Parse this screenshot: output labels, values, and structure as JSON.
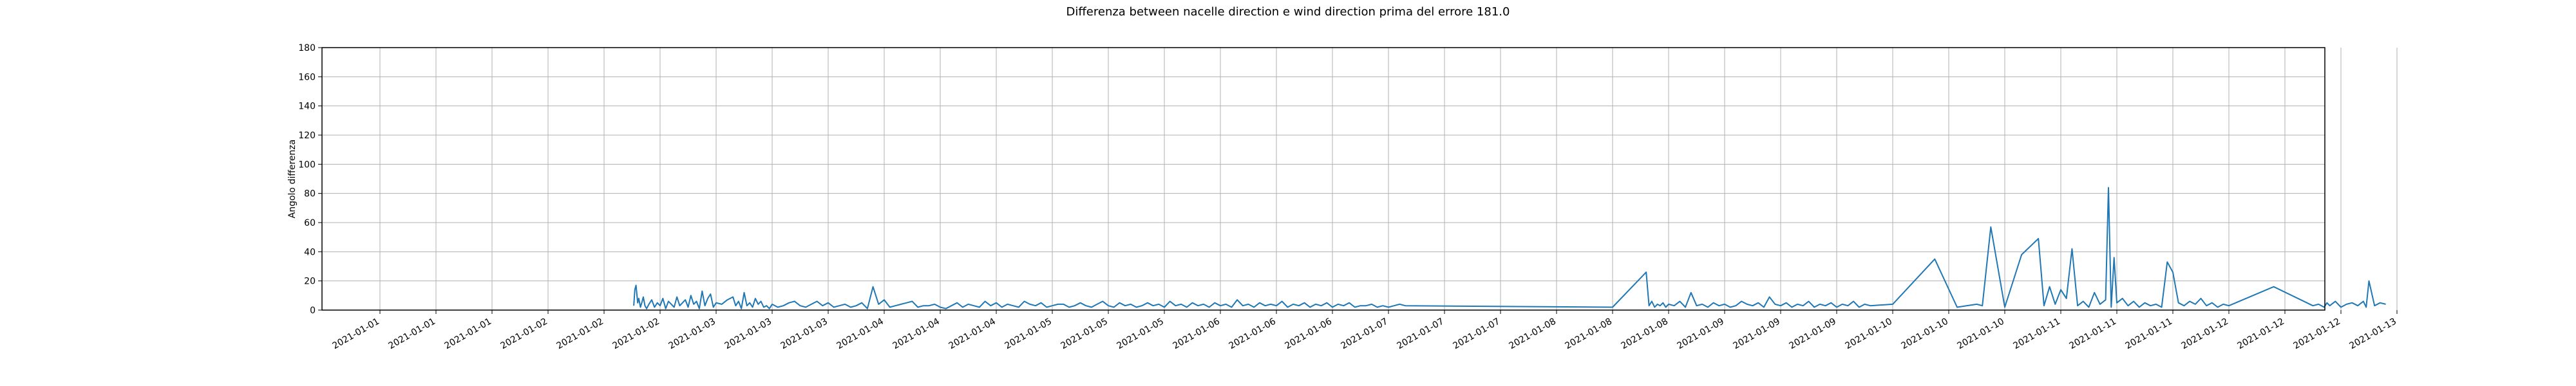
{
  "chart_data": {
    "type": "line",
    "title": "Differenza between nacelle direction e wind direction prima del errore 181.0",
    "xlabel": "",
    "ylabel": "Angolo differenza",
    "ylim": [
      0,
      180
    ],
    "y_ticks": [
      0,
      20,
      40,
      60,
      80,
      100,
      120,
      140,
      160,
      180
    ],
    "x_ticks": [
      "2021-01-01",
      "2021-01-01",
      "2021-01-01",
      "2021-01-02",
      "2021-01-02",
      "2021-01-02",
      "2021-01-03",
      "2021-01-03",
      "2021-01-03",
      "2021-01-04",
      "2021-01-04",
      "2021-01-04",
      "2021-01-05",
      "2021-01-05",
      "2021-01-05",
      "2021-01-06",
      "2021-01-06",
      "2021-01-06",
      "2021-01-07",
      "2021-01-07",
      "2021-01-07",
      "2021-01-08",
      "2021-01-08",
      "2021-01-08",
      "2021-01-09",
      "2021-01-09",
      "2021-01-09",
      "2021-01-10",
      "2021-01-10",
      "2021-01-10",
      "2021-01-11",
      "2021-01-11",
      "2021-01-11",
      "2021-01-12",
      "2021-01-12",
      "2021-01-12",
      "2021-01-13"
    ],
    "grid": true,
    "series_color": "#1f77b4",
    "series": [
      {
        "x": [
          4.53,
          4.55,
          4.57,
          4.6,
          4.62,
          4.65,
          4.68,
          4.7,
          4.73,
          4.76,
          4.8,
          4.85,
          4.9,
          4.95,
          5.0,
          5.05,
          5.1,
          5.15,
          5.2,
          5.25,
          5.3,
          5.35,
          5.4,
          5.45,
          5.5,
          5.55,
          5.6,
          5.65,
          5.7,
          5.75,
          5.8,
          5.85,
          5.9,
          5.95,
          6.0,
          6.1,
          6.2,
          6.3,
          6.35,
          6.4,
          6.45,
          6.5,
          6.55,
          6.6,
          6.65,
          6.7,
          6.75,
          6.8,
          6.85,
          6.9,
          6.95,
          7.0,
          7.1,
          7.2,
          7.3,
          7.4,
          7.5,
          7.6,
          7.7,
          7.8,
          7.9,
          8.0,
          8.1,
          8.2,
          8.3,
          8.4,
          8.5,
          8.6,
          8.7,
          8.8,
          8.9,
          9.0,
          9.1,
          9.2,
          9.3,
          9.4,
          9.5,
          9.6,
          9.7,
          9.8,
          9.9,
          10.0,
          10.1,
          10.2,
          10.3,
          10.4,
          10.5,
          10.6,
          10.7,
          10.8,
          10.9,
          11.0,
          11.1,
          11.2,
          11.3,
          11.4,
          11.5,
          11.6,
          11.7,
          11.8,
          11.9,
          12.0,
          12.1,
          12.2,
          12.3,
          12.4,
          12.5,
          12.6,
          12.7,
          12.8,
          12.9,
          13.0,
          13.1,
          13.2,
          13.3,
          13.4,
          13.5,
          13.6,
          13.7,
          13.8,
          13.9,
          14.0,
          14.1,
          14.2,
          14.3,
          14.4,
          14.5,
          14.6,
          14.7,
          14.8,
          14.9,
          15.0,
          15.1,
          15.2,
          15.3,
          15.4,
          15.5,
          15.6,
          15.7,
          15.8,
          15.9,
          16.0,
          16.1,
          16.2,
          16.3,
          16.4,
          16.5,
          16.6,
          16.7,
          16.8,
          16.9,
          17.0,
          17.1,
          17.2,
          17.3,
          17.4,
          17.5,
          17.6,
          17.7,
          17.8,
          17.9,
          18.0,
          18.1,
          18.2,
          18.3,
          22.0,
          22.6,
          22.65,
          22.7,
          22.75,
          22.8,
          22.85,
          22.9,
          22.95,
          23.0,
          23.1,
          23.2,
          23.3,
          23.4,
          23.5,
          23.6,
          23.7,
          23.8,
          23.9,
          24.0,
          24.1,
          24.2,
          24.3,
          24.4,
          24.5,
          24.6,
          24.7,
          24.8,
          24.9,
          25.0,
          25.1,
          25.2,
          25.3,
          25.4,
          25.5,
          25.6,
          25.7,
          25.8,
          25.9,
          26.0,
          26.1,
          26.2,
          26.3,
          26.4,
          26.5,
          26.6,
          27.0,
          27.75,
          28.15,
          28.5,
          28.6,
          28.75,
          29.0,
          29.3,
          29.6,
          29.7,
          29.8,
          29.9,
          30.0,
          30.1,
          30.2,
          30.3,
          30.4,
          30.5,
          30.6,
          30.7,
          30.8,
          30.85,
          30.9,
          30.95,
          31.0,
          31.1,
          31.2,
          31.3,
          31.4,
          31.5,
          31.6,
          31.7,
          31.8,
          31.9,
          32.0,
          32.1,
          32.2,
          32.3,
          32.4,
          32.5,
          32.6,
          32.7,
          32.8,
          32.9,
          33.0,
          33.8,
          34.5,
          34.6,
          34.7,
          34.75,
          34.8,
          34.9,
          35.0,
          35.1,
          35.2,
          35.3,
          35.4,
          35.45,
          35.5,
          35.6,
          35.7,
          35.8
        ],
        "y": [
          3,
          14,
          17,
          5,
          8,
          2,
          6,
          9,
          3,
          1,
          4,
          7,
          2,
          5,
          3,
          8,
          1,
          6,
          4,
          2,
          9,
          3,
          5,
          7,
          2,
          10,
          4,
          6,
          1,
          13,
          3,
          8,
          11,
          2,
          5,
          4,
          7,
          9,
          3,
          6,
          1,
          12,
          3,
          5,
          2,
          8,
          4,
          6,
          2,
          3,
          1,
          4,
          2,
          3,
          5,
          6,
          3,
          2,
          4,
          6,
          3,
          5,
          2,
          3,
          4,
          2,
          3,
          5,
          1,
          16,
          4,
          7,
          2,
          3,
          4,
          5,
          6,
          2,
          3,
          3,
          4,
          2,
          1,
          3,
          5,
          2,
          4,
          3,
          2,
          6,
          3,
          5,
          2,
          4,
          3,
          2,
          6,
          4,
          3,
          5,
          2,
          3,
          4,
          4,
          2,
          3,
          5,
          3,
          2,
          4,
          6,
          3,
          2,
          5,
          3,
          4,
          2,
          3,
          5,
          3,
          4,
          2,
          6,
          3,
          4,
          2,
          5,
          3,
          4,
          2,
          5,
          3,
          4,
          2,
          7,
          3,
          4,
          2,
          5,
          3,
          4,
          3,
          6,
          2,
          4,
          3,
          5,
          2,
          4,
          3,
          5,
          2,
          4,
          3,
          5,
          2,
          3,
          3,
          4,
          2,
          3,
          2,
          3,
          4,
          3,
          2,
          26,
          3,
          6,
          2,
          4,
          3,
          5,
          2,
          4,
          3,
          6,
          2,
          12,
          3,
          4,
          2,
          5,
          3,
          4,
          2,
          3,
          6,
          4,
          3,
          5,
          2,
          9,
          4,
          3,
          5,
          2,
          4,
          3,
          6,
          2,
          4,
          3,
          5,
          2,
          4,
          3,
          6,
          2,
          4,
          3,
          4,
          35,
          2,
          4,
          3,
          57,
          2,
          38,
          49,
          3,
          16,
          4,
          14,
          8,
          42,
          3,
          6,
          2,
          12,
          4,
          7,
          84,
          2,
          36,
          5,
          8,
          3,
          6,
          2,
          5,
          3,
          4,
          2,
          33,
          26,
          5,
          3,
          6,
          4,
          8,
          3,
          5,
          2,
          4,
          3,
          16,
          3,
          4,
          2,
          5,
          3,
          6,
          2,
          4,
          5,
          3,
          6,
          2,
          20,
          3,
          5,
          4
        ]
      }
    ]
  }
}
